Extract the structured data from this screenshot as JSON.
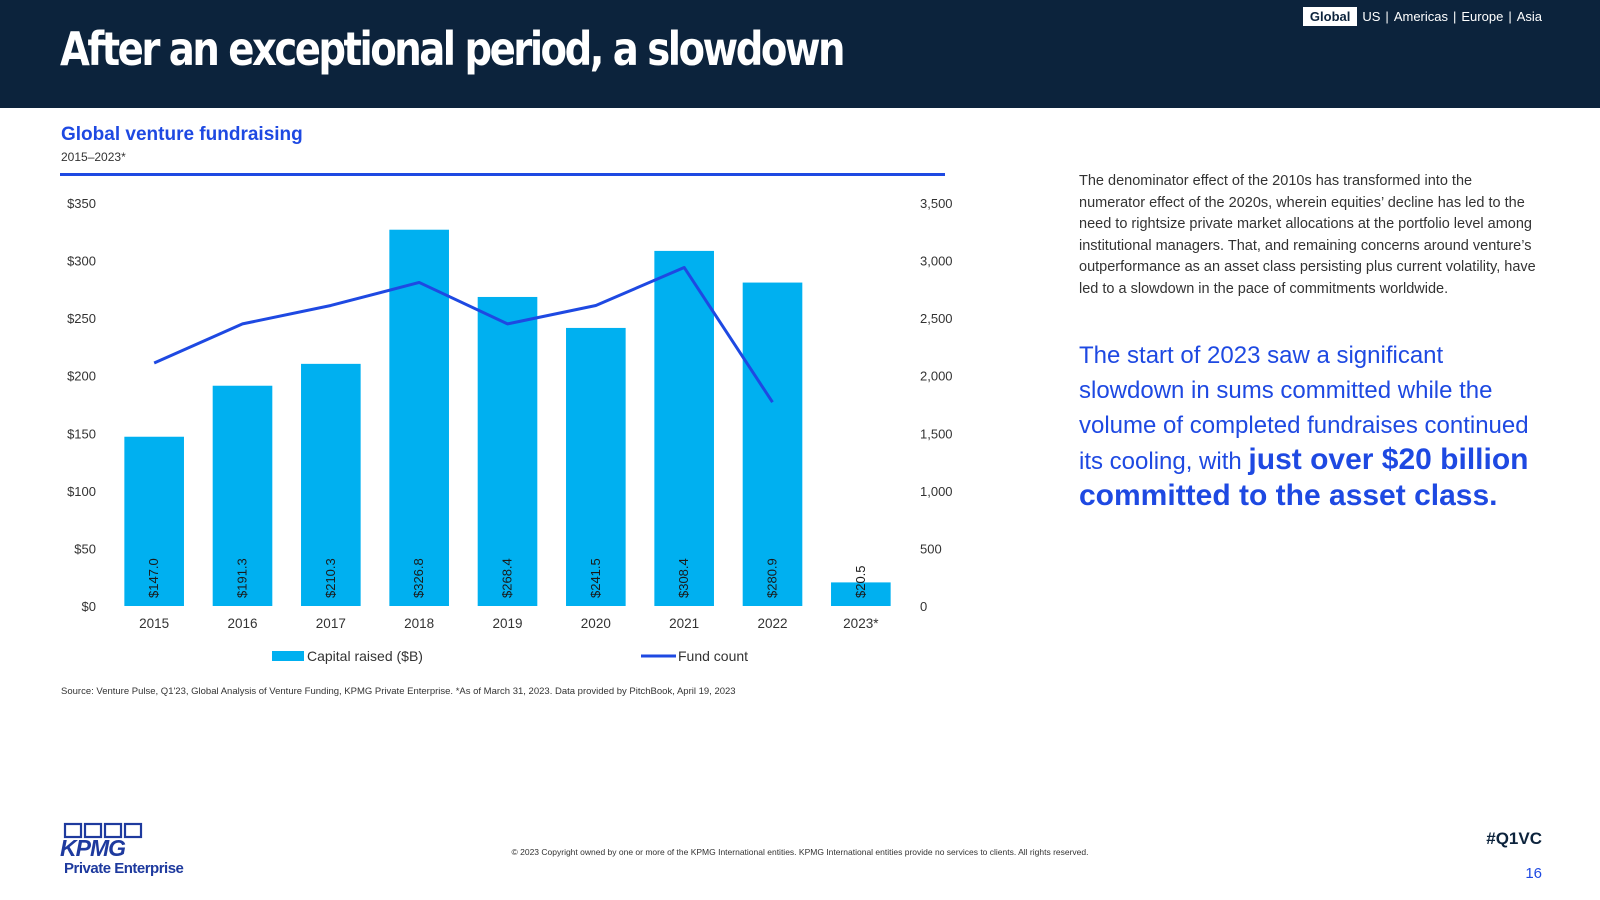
{
  "header": {
    "title": "After an exceptional period, a slowdown",
    "regions": {
      "active": "Global",
      "items": [
        "US",
        "Americas",
        "Europe",
        "Asia"
      ],
      "separator": "|"
    }
  },
  "chart_section": {
    "title": "Global venture fundraising",
    "subtitle": "2015–2023*"
  },
  "chart_data": {
    "type": "bar",
    "categories": [
      "2015",
      "2016",
      "2017",
      "2018",
      "2019",
      "2020",
      "2021",
      "2022",
      "2023*"
    ],
    "series": [
      {
        "name": "Capital raised ($B)",
        "type": "bar",
        "axis": "left",
        "values": [
          147.0,
          191.3,
          210.3,
          326.8,
          268.4,
          241.5,
          308.4,
          280.9,
          20.5
        ],
        "data_labels": [
          "$147.0",
          "$191.3",
          "$210.3",
          "$326.8",
          "$268.4",
          "$241.5",
          "$308.4",
          "$280.9",
          "$20.5"
        ],
        "color": "#00b0f0"
      },
      {
        "name": "Fund count",
        "type": "line",
        "axis": "right",
        "values": [
          2110,
          2450,
          2610,
          2810,
          2450,
          2610,
          2940,
          1770,
          null
        ],
        "color": "#1e49e2"
      }
    ],
    "left_axis": {
      "ylim": [
        0,
        350
      ],
      "ticks": [
        0,
        50,
        100,
        150,
        200,
        250,
        300,
        350
      ],
      "tick_labels": [
        "$0",
        "$50",
        "$100",
        "$150",
        "$200",
        "$250",
        "$300",
        "$350"
      ]
    },
    "right_axis": {
      "ylim": [
        0,
        3500
      ],
      "ticks": [
        0,
        500,
        1000,
        1500,
        2000,
        2500,
        3000,
        3500
      ],
      "tick_labels": [
        "0",
        "500",
        "1,000",
        "1,500",
        "2,000",
        "2,500",
        "3,000",
        "3,500"
      ]
    },
    "grid": false,
    "legend": "bottom",
    "legend_labels": [
      "Capital raised ($B)",
      "Fund count"
    ]
  },
  "source": "Source: Venture Pulse, Q1'23, Global Analysis of Venture Funding, KPMG Private Enterprise. *As of March 31, 2023. Data provided by PitchBook, April 19, 2023",
  "body_text": "The denominator effect of the 2010s has transformed into the numerator effect of the 2020s, wherein equities’ decline has led to the need to rightsize private market allocations at the portfolio level among institutional managers. That, and remaining concerns around venture’s outperformance as an asset class persisting plus current volatility, have led to a slowdown in the pace of commitments worldwide.",
  "callout": {
    "lead": "The start of 2023 saw a significant slowdown in sums committed while the volume of completed fundraises continued its cooling, with ",
    "emphasis": "just over $20 billion committed to the asset class."
  },
  "footer": {
    "logo_text": "KPMG",
    "logo_sub": "Private Enterprise",
    "copyright": "© 2023 Copyright owned by one or more of the KPMG International entities. KPMG International entities provide no services to clients. All rights reserved.",
    "hashtag": "#Q1VC",
    "page_number": "16"
  },
  "colors": {
    "header_bg": "#0c233c",
    "accent_blue": "#1e49e2",
    "bar_blue": "#00b0f0"
  }
}
